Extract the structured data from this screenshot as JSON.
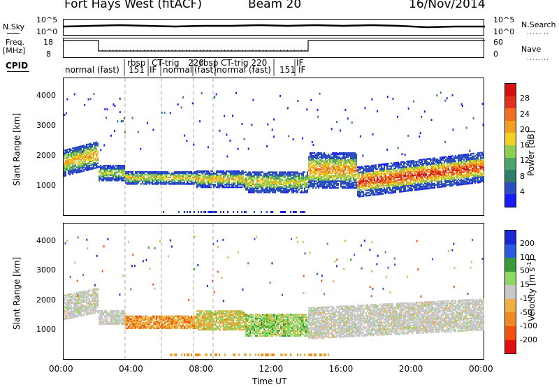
{
  "header": {
    "radar": "Fort Hays West (fitACF)",
    "beam": "Beam 20",
    "date": "16/Nov/2014"
  },
  "noise": {
    "left_label": "N.Sky",
    "right_label": "N.Search",
    "left_ticks": [
      "10^5",
      "10^0"
    ],
    "right_ticks": [
      "10^5",
      "10^0"
    ]
  },
  "freq": {
    "left_label_line1": "Freq.",
    "left_label_line2": "[MHz]",
    "left_ticks": [
      "18",
      "8"
    ],
    "right_label": "Nave",
    "right_ticks": [
      "60",
      "0"
    ]
  },
  "cpid": {
    "label": "CPID",
    "segments": [
      {
        "text": "normal (fast)",
        "row": 0
      },
      {
        "text": "rbsp",
        "row": -1
      },
      {
        "text": "151",
        "row": 0
      },
      {
        "text": "CT-trig",
        "row": -1
      },
      {
        "text": "IF",
        "row": 0
      },
      {
        "text": "normal",
        "row": 0
      },
      {
        "text": "220",
        "row": -1
      },
      {
        "text": "rbsp",
        "row": -1
      },
      {
        "text": "(fast)",
        "row": 0
      },
      {
        "text": "CT-trig 220",
        "row": -1
      },
      {
        "text": "normal (fast)",
        "row": 0
      },
      {
        "text": "IF",
        "row": -1
      },
      {
        "text": "151",
        "row": 0
      },
      {
        "text": "IF",
        "row": 0
      }
    ]
  },
  "chart_data": [
    {
      "type": "heatmap",
      "title": "",
      "ylabel": "Slant Range [km]",
      "ylim": [
        0,
        4600
      ],
      "y_ticks": [
        "1000",
        "2000",
        "3000",
        "4000"
      ],
      "x_ticks": [
        "00:00",
        "04:00",
        "08:00",
        "12:00",
        "16:00",
        "20:00",
        "00:00"
      ],
      "colorbar": {
        "label": "Power [dB]",
        "ticks": [
          "4",
          "8",
          "12",
          "16",
          "20",
          "24",
          "28"
        ],
        "colors": [
          "#1a1aff",
          "#2b4fbf",
          "#2e7d6a",
          "#4fa36a",
          "#8ecf52",
          "#f0d020",
          "#f0a020",
          "#f07020",
          "#e03020",
          "#d41010"
        ]
      }
    },
    {
      "type": "heatmap",
      "title": "",
      "ylabel": "Slant Range [km]",
      "ylim": [
        0,
        4600
      ],
      "y_ticks": [
        "1000",
        "2000",
        "3000",
        "4000"
      ],
      "x_ticks": [
        "00:00",
        "04:00",
        "08:00",
        "12:00",
        "16:00",
        "20:00",
        "00:00"
      ],
      "xlabel": "Time UT",
      "colorbar": {
        "label": "Velocity [m s",
        "label_sup": "-1",
        "ticks": [
          "200",
          "100",
          "50",
          "15",
          "-15",
          "-50",
          "-100",
          "-200"
        ],
        "colors": [
          "#1a2ad0",
          "#2a5ae0",
          "#3a9a3a",
          "#8cd860",
          "#c8c8c8",
          "#f0b040",
          "#f08a20",
          "#f05010",
          "#e01010"
        ]
      }
    }
  ]
}
